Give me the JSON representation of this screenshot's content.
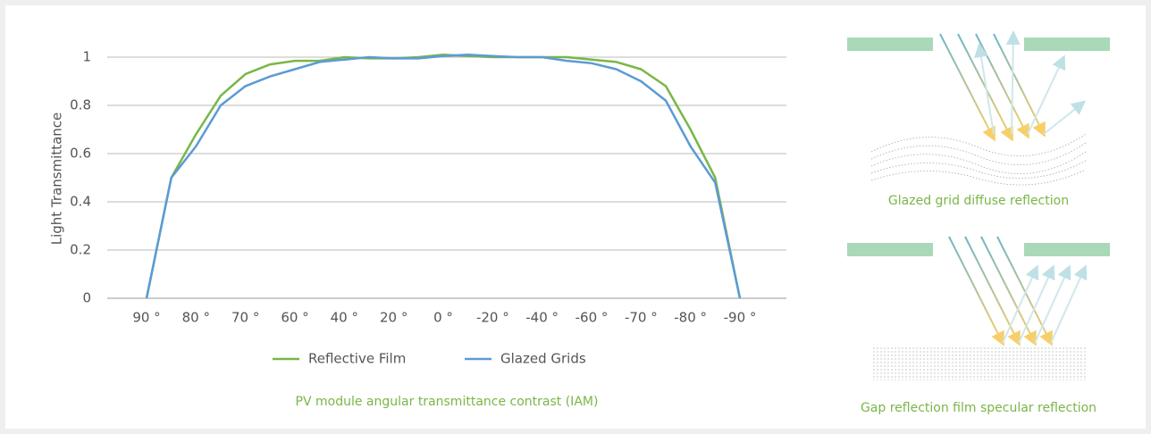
{
  "chart_data": {
    "type": "line",
    "y_label": "Light Transmittance",
    "caption": "PV module angular transmittance contrast (IAM)",
    "categories": [
      "90 °",
      null,
      "80 °",
      null,
      "70 °",
      null,
      "60 °",
      null,
      "40 °",
      null,
      "20 °",
      null,
      "0 °",
      null,
      "-20 °",
      null,
      "-40 °",
      null,
      "-60 °",
      null,
      "-70 °",
      null,
      "-80 °",
      null,
      "-90 °"
    ],
    "series": [
      {
        "name": "Reflective Film",
        "color": "#7ab648",
        "values": [
          0,
          0.5,
          0.68,
          0.84,
          0.93,
          0.97,
          0.985,
          0.985,
          1.0,
          0.995,
          0.995,
          1.0,
          1.01,
          1.005,
          1.0,
          1.0,
          1.0,
          1.0,
          0.99,
          0.98,
          0.95,
          0.88,
          0.7,
          0.5,
          0
        ]
      },
      {
        "name": "Glazed Grids",
        "color": "#5b9bd5",
        "values": [
          0,
          0.5,
          0.63,
          0.8,
          0.88,
          0.92,
          0.95,
          0.98,
          0.99,
          1.0,
          0.995,
          0.995,
          1.005,
          1.01,
          1.005,
          1.0,
          1.0,
          0.985,
          0.975,
          0.95,
          0.9,
          0.82,
          0.63,
          0.48,
          0
        ]
      }
    ],
    "ylim": [
      0,
      1.1
    ],
    "yticks": [
      0,
      0.2,
      0.4,
      0.6,
      0.8,
      1
    ],
    "grid": true
  },
  "diagrams": [
    {
      "caption": "Glazed grid diffuse reflection"
    },
    {
      "caption": "Gap reflection film specular reflection"
    }
  ]
}
